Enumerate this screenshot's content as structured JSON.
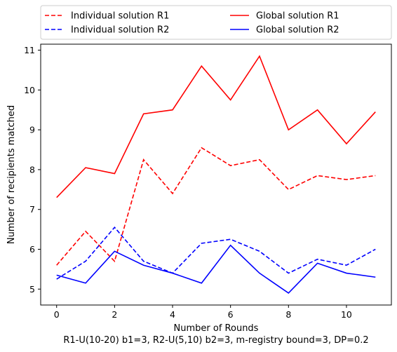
{
  "chart_data": {
    "type": "line",
    "x": [
      0,
      1,
      2,
      3,
      4,
      5,
      6,
      7,
      8,
      9,
      10,
      11
    ],
    "series": [
      {
        "name": "Individual solution R1",
        "color": "#ff0000",
        "style": "dashed",
        "values": [
          5.6,
          6.45,
          5.7,
          8.25,
          7.4,
          8.55,
          8.1,
          8.25,
          7.5,
          7.85,
          7.75,
          7.85
        ]
      },
      {
        "name": "Individual solution R2",
        "color": "#0000ff",
        "style": "dashed",
        "values": [
          5.25,
          5.7,
          6.55,
          5.7,
          5.4,
          6.15,
          6.25,
          5.95,
          5.4,
          5.75,
          5.6,
          6.0
        ]
      },
      {
        "name": "Global solution R1",
        "color": "#ff0000",
        "style": "solid",
        "values": [
          7.3,
          8.05,
          7.9,
          9.4,
          9.5,
          10.6,
          9.75,
          10.85,
          9.0,
          9.5,
          8.65,
          9.45
        ]
      },
      {
        "name": "Global solution R2",
        "color": "#0000ff",
        "style": "solid",
        "values": [
          5.35,
          5.15,
          5.95,
          5.6,
          5.4,
          5.15,
          6.1,
          5.4,
          4.9,
          5.65,
          5.4,
          5.3
        ]
      }
    ],
    "xlabel": "Number of Rounds",
    "xlabel_sub": "R1-U(10-20) b1=3, R2-U(5,10) b2=3, m-registry bound=3, DP=0.2",
    "ylabel": "Number of recipients matched",
    "xlim": [
      -0.55,
      11.55
    ],
    "ylim": [
      4.6,
      11.15
    ],
    "xticks": [
      0,
      2,
      4,
      6,
      8,
      10
    ],
    "yticks": [
      5,
      6,
      7,
      8,
      9,
      10,
      11
    ],
    "grid": false,
    "legend_position": "top, outside plot, two columns"
  }
}
